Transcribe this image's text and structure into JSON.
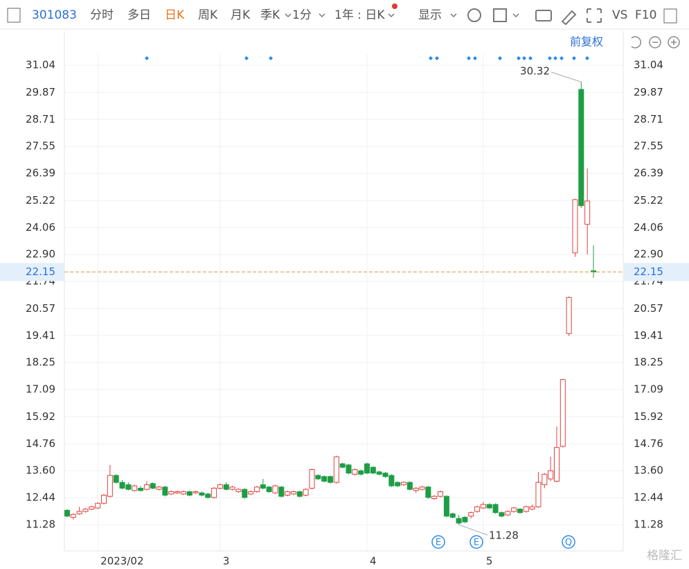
{
  "toolbar": {
    "code": "301083",
    "tabs": [
      "分时",
      "多日",
      "日K",
      "周K",
      "月K",
      "季K",
      "1分",
      "1年 : 日K",
      "显示",
      "VS",
      "F10"
    ],
    "adjust": "前复权"
  },
  "watermark": "格隆汇",
  "chart_data": {
    "type": "candlestick",
    "categories": [
      null,
      null,
      null,
      null,
      null,
      "2023/02",
      null,
      null,
      null,
      null,
      null,
      null,
      null,
      null,
      null,
      null,
      null,
      null,
      null,
      null,
      null,
      null,
      null,
      null,
      null,
      "3",
      null,
      null,
      null,
      null,
      null,
      null,
      null,
      null,
      null,
      null,
      null,
      null,
      null,
      null,
      null,
      null,
      null,
      null,
      null,
      null,
      null,
      null,
      null,
      "4",
      null,
      null,
      null,
      null,
      null,
      null,
      null,
      null,
      null,
      null,
      null,
      null,
      null,
      null,
      null,
      null,
      null,
      null,
      "5",
      null,
      null,
      null,
      null,
      null,
      null,
      null,
      null,
      null,
      null,
      null,
      null,
      null,
      null,
      null,
      null,
      null,
      null
    ],
    "open": [
      11.9,
      11.6,
      11.75,
      11.85,
      11.95,
      12.0,
      12.2,
      12.5,
      13.4,
      13.1,
      13.0,
      12.75,
      12.85,
      12.8,
      13.05,
      12.8,
      12.9,
      12.6,
      12.65,
      12.6,
      12.7,
      12.65,
      12.65,
      12.6,
      12.45,
      12.85,
      13.0,
      12.8,
      12.7,
      12.8,
      12.6,
      12.7,
      13.0,
      12.9,
      12.65,
      12.9,
      12.55,
      12.6,
      12.7,
      12.55,
      12.85,
      13.4,
      13.35,
      13.35,
      13.1,
      13.9,
      13.85,
      13.45,
      13.6,
      13.9,
      13.75,
      13.55,
      13.5,
      13.4,
      13.1,
      13.0,
      13.1,
      12.75,
      12.8,
      12.9,
      12.4,
      12.5,
      12.5,
      11.75,
      11.55,
      11.6,
      11.65,
      11.85,
      12.0,
      12.15,
      12.15,
      11.8,
      11.7,
      11.85,
      11.95,
      11.85,
      11.95,
      12.05,
      13.0,
      13.25,
      13.15,
      14.65,
      19.5,
      22.97,
      30.0,
      24.2,
      22.2
    ],
    "high": [
      11.95,
      11.78,
      12.05,
      12.0,
      12.1,
      12.25,
      12.6,
      13.85,
      13.45,
      13.2,
      13.1,
      13.0,
      12.95,
      13.15,
      13.1,
      12.95,
      12.95,
      12.75,
      12.75,
      12.75,
      12.75,
      12.75,
      12.7,
      12.65,
      12.9,
      13.05,
      13.1,
      12.95,
      12.85,
      12.85,
      12.75,
      12.95,
      13.25,
      12.95,
      13.0,
      12.95,
      12.75,
      12.75,
      12.75,
      12.85,
      13.7,
      13.45,
      13.4,
      13.4,
      14.25,
      13.95,
      13.9,
      13.7,
      13.65,
      13.95,
      13.8,
      13.6,
      13.55,
      13.45,
      13.15,
      13.15,
      13.15,
      12.9,
      12.95,
      12.95,
      12.55,
      12.75,
      12.55,
      11.8,
      11.7,
      11.65,
      11.85,
      12.1,
      12.25,
      12.2,
      12.2,
      11.85,
      11.9,
      12.05,
      12.0,
      12.1,
      12.15,
      13.55,
      13.5,
      14.2,
      15.5,
      17.55,
      21.1,
      25.3,
      30.32,
      26.6,
      23.3
    ],
    "low": [
      11.6,
      11.5,
      11.7,
      11.8,
      11.9,
      11.95,
      12.15,
      12.45,
      13.05,
      12.8,
      12.75,
      12.7,
      12.7,
      12.75,
      12.8,
      12.75,
      12.5,
      12.55,
      12.6,
      12.55,
      12.5,
      12.6,
      12.5,
      12.4,
      12.4,
      12.8,
      12.75,
      12.75,
      12.65,
      12.4,
      12.55,
      12.65,
      12.8,
      12.65,
      12.6,
      12.45,
      12.5,
      12.55,
      12.45,
      12.5,
      12.8,
      13.2,
      13.1,
      13.05,
      13.05,
      13.7,
      13.45,
      13.4,
      13.4,
      13.45,
      13.45,
      13.4,
      13.3,
      12.9,
      12.9,
      12.95,
      12.75,
      12.65,
      12.75,
      12.4,
      12.35,
      12.45,
      11.6,
      11.55,
      11.28,
      11.35,
      11.55,
      11.8,
      11.95,
      11.95,
      11.75,
      11.6,
      11.65,
      11.8,
      11.75,
      11.8,
      11.9,
      12.0,
      12.85,
      13.15,
      13.1,
      14.6,
      19.4,
      22.8,
      24.9,
      22.9,
      21.9
    ],
    "close": [
      11.65,
      11.72,
      11.85,
      11.95,
      12.05,
      12.2,
      12.55,
      13.4,
      13.1,
      12.85,
      12.8,
      12.95,
      12.75,
      13.0,
      12.85,
      12.9,
      12.55,
      12.7,
      12.7,
      12.7,
      12.55,
      12.7,
      12.55,
      12.45,
      12.85,
      13.0,
      12.8,
      12.9,
      12.8,
      12.45,
      12.7,
      12.9,
      12.85,
      12.7,
      12.95,
      12.5,
      12.7,
      12.7,
      12.5,
      12.8,
      13.65,
      13.25,
      13.15,
      13.1,
      14.2,
      13.75,
      13.5,
      13.65,
      13.45,
      13.5,
      13.5,
      13.45,
      13.35,
      12.95,
      12.95,
      13.1,
      12.8,
      12.85,
      12.9,
      12.45,
      12.5,
      12.7,
      11.65,
      11.6,
      11.35,
      11.4,
      11.8,
      12.05,
      12.15,
      12.0,
      11.8,
      11.65,
      11.85,
      12.0,
      11.8,
      12.05,
      12.05,
      13.1,
      13.45,
      13.6,
      14.6,
      17.52,
      21.05,
      25.26,
      25.0,
      25.2,
      22.15
    ],
    "up_color": "#e0403c",
    "down_color": "#1f9d45",
    "last_color": "#e8913a",
    "event_icons": [
      "E",
      "E",
      "Q"
    ],
    "ylim": [
      10.15,
      31.52
    ],
    "yticks": [
      11.28,
      12.44,
      {
        "value": 13.6,
        "label": "13.60"
      },
      14.76,
      15.92,
      17.09,
      18.25,
      19.41,
      20.57,
      21.74,
      {
        "value": 22.9,
        "label": "22.90"
      },
      24.06,
      25.22,
      26.39,
      27.55,
      28.71,
      29.87,
      31.04
    ],
    "grid": true
  }
}
